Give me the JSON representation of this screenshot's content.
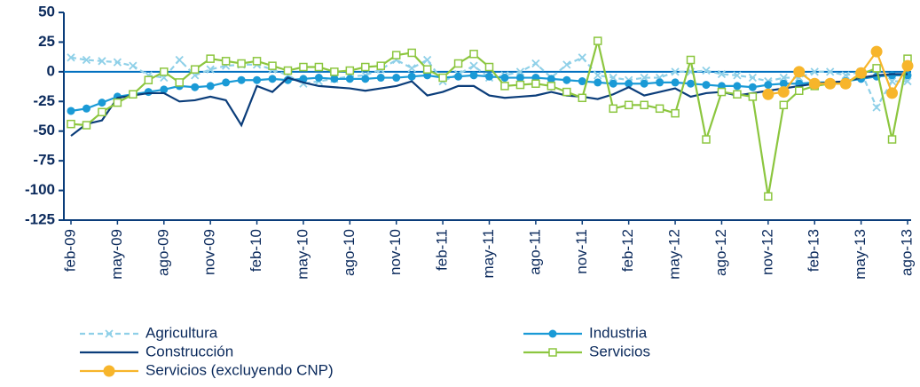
{
  "chart_data": {
    "type": "line",
    "categories": [
      "feb-09",
      null,
      null,
      "may-09",
      null,
      null,
      "ago-09",
      null,
      null,
      "nov-09",
      null,
      null,
      "feb-10",
      null,
      null,
      "may-10",
      null,
      null,
      "ago-10",
      null,
      null,
      "nov-10",
      null,
      null,
      "feb-11",
      null,
      null,
      "may-11",
      null,
      null,
      "ago-11",
      null,
      null,
      "nov-11",
      null,
      null,
      "feb-12",
      null,
      null,
      "may-12",
      null,
      null,
      "ago-12",
      null,
      null,
      "nov-12",
      null,
      null,
      "feb-13",
      null,
      null,
      "may-13",
      null,
      null,
      "ago-13"
    ],
    "series": [
      {
        "name": "Agricultura",
        "color": "#8fd0e8",
        "marker": "x",
        "dashed": true,
        "values": [
          12,
          10,
          9,
          8,
          5,
          -3,
          -5,
          10,
          -3,
          2,
          5,
          6,
          6,
          2,
          -3,
          -10,
          -8,
          -6,
          -4,
          -3,
          2,
          10,
          3,
          10,
          -8,
          -2,
          5,
          -5,
          -3,
          0,
          7,
          -5,
          6,
          12,
          -3,
          -5,
          -7,
          -5,
          -5,
          0,
          0,
          1,
          -2,
          -3,
          -5,
          -8,
          -5,
          -5,
          0,
          0,
          -3,
          0,
          -30,
          -8,
          -8
        ]
      },
      {
        "name": "Industria",
        "color": "#1a9ad6",
        "marker": "circle",
        "dashed": false,
        "values": [
          -33,
          -31,
          -26,
          -21,
          -19,
          -17,
          -15,
          -12,
          -13,
          -12,
          -9,
          -7,
          -7,
          -6,
          -7,
          -6,
          -5,
          -6,
          -6,
          -6,
          -5,
          -5,
          -4,
          -3,
          -5,
          -4,
          -3,
          -4,
          -5,
          -5,
          -5,
          -6,
          -7,
          -8,
          -9,
          -10,
          -10,
          -10,
          -9,
          -9,
          -10,
          -11,
          -12,
          -12,
          -13,
          -11,
          -10,
          -10,
          -9,
          -9,
          -8,
          -6,
          -4,
          -3,
          -3
        ]
      },
      {
        "name": "Construcción",
        "color": "#0b3d7a",
        "marker": "none",
        "dashed": false,
        "values": [
          -54,
          -44,
          -41,
          -22,
          -20,
          -18,
          -18,
          -25,
          -24,
          -21,
          -24,
          -45,
          -12,
          -17,
          -5,
          -9,
          -12,
          -13,
          -14,
          -16,
          -14,
          -12,
          -8,
          -20,
          -17,
          -12,
          -12,
          -20,
          -22,
          -21,
          -20,
          -17,
          -20,
          -21,
          -23,
          -19,
          -13,
          -20,
          -17,
          -14,
          -21,
          -18,
          -17,
          -20,
          -18,
          -16,
          -14,
          -12,
          -10,
          -9,
          -8,
          -5,
          -3,
          -2,
          -2
        ]
      },
      {
        "name": "Servicios",
        "color": "#8cc63f",
        "marker": "square",
        "dashed": false,
        "values": [
          -44,
          -45,
          -34,
          -26,
          -19,
          -7,
          0,
          -9,
          2,
          11,
          9,
          7,
          9,
          5,
          1,
          4,
          4,
          0,
          1,
          4,
          5,
          14,
          16,
          2,
          -5,
          7,
          15,
          4,
          -12,
          -11,
          -10,
          -12,
          -17,
          -22,
          26,
          -31,
          -28,
          -28,
          -31,
          -35,
          10,
          -57,
          -17,
          -19,
          -21,
          -105,
          -28,
          -16,
          -12,
          -10,
          -10,
          -2,
          3,
          -57,
          11
        ]
      },
      {
        "name": "Servicios (excluyendo CNP)",
        "color": "#f7b52b",
        "marker": "bigcircle",
        "dashed": false,
        "values": [
          null,
          null,
          null,
          null,
          null,
          null,
          null,
          null,
          null,
          null,
          null,
          null,
          null,
          null,
          null,
          null,
          null,
          null,
          null,
          null,
          null,
          null,
          null,
          null,
          null,
          null,
          null,
          null,
          null,
          null,
          null,
          null,
          null,
          null,
          null,
          null,
          null,
          null,
          null,
          null,
          null,
          null,
          null,
          null,
          null,
          -19,
          -17,
          0,
          -10,
          -10,
          -10,
          -1,
          17,
          -18,
          5
        ]
      }
    ],
    "ylim": [
      -125,
      50
    ],
    "yticks": [
      -125,
      -100,
      -75,
      -50,
      -25,
      0,
      25,
      50
    ]
  }
}
